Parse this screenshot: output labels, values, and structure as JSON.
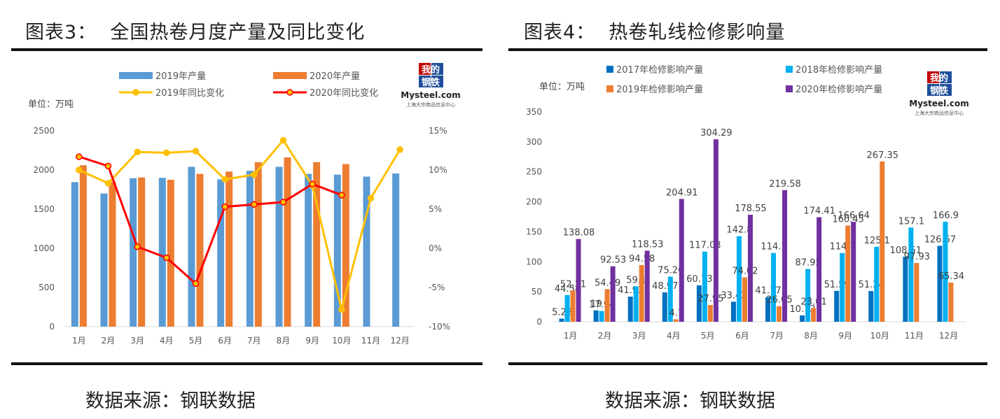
{
  "figures": [
    {
      "title": "图表3：  全国热卷月度产量及同比变化",
      "unit": "单位：万吨",
      "source": "数据来源：钢联数据",
      "logo": {
        "line1": "我的",
        "line2": "钢铁",
        "brand": "Mysteel.com",
        "tagline": "上海大宗商品信息中心"
      }
    },
    {
      "title": "图表4：  热卷轧线检修影响量",
      "unit": "单位：万吨",
      "source": "数据来源：钢联数据",
      "logo": {
        "line1": "我的",
        "line2": "钢铁",
        "brand": "Mysteel.com",
        "tagline": "上海大宗商品信息中心"
      }
    }
  ],
  "chart_data": [
    {
      "type": "bar",
      "categories": [
        "1月",
        "2月",
        "3月",
        "4月",
        "5月",
        "6月",
        "7月",
        "8月",
        "9月",
        "10月",
        "11月",
        "12月"
      ],
      "ylim": [
        0,
        2500
      ],
      "yticks": [
        0,
        500,
        1000,
        1500,
        2000,
        2500
      ],
      "y2lim": [
        -10,
        15
      ],
      "y2ticks": [
        "-10%",
        "-5%",
        "0%",
        "5%",
        "10%",
        "15%"
      ],
      "grid": false,
      "legend_position": "top",
      "series": [
        {
          "name": "2019年产量",
          "kind": "bar",
          "axis": "left",
          "color": "#5b9bd5",
          "values": [
            1845,
            1700,
            1895,
            1900,
            2040,
            1880,
            1990,
            2040,
            1950,
            1940,
            1915,
            1955
          ]
        },
        {
          "name": "2020年产量",
          "kind": "bar",
          "axis": "left",
          "color": "#ed7d31",
          "values": [
            2060,
            1850,
            1905,
            1875,
            1950,
            1980,
            2100,
            2160,
            2100,
            2075,
            null,
            null
          ]
        },
        {
          "name": "2019年同比变化",
          "kind": "line",
          "axis": "right",
          "color": "#ffc000",
          "values": [
            10,
            8.3,
            12.3,
            12.2,
            12.4,
            8.8,
            9.4,
            13.8,
            8.0,
            -7.8,
            6.4,
            12.6
          ]
        },
        {
          "name": "2020年同比变化",
          "kind": "line",
          "axis": "right",
          "color": "#ff0000",
          "values": [
            11.7,
            10.5,
            0.2,
            -1.2,
            -4.5,
            5.3,
            5.6,
            5.9,
            8.2,
            6.8,
            null,
            null
          ]
        }
      ]
    },
    {
      "type": "bar",
      "categories": [
        "1月",
        "2月",
        "3月",
        "4月",
        "5月",
        "6月",
        "7月",
        "8月",
        "9月",
        "10月",
        "11月",
        "12月"
      ],
      "ylim": [
        0,
        350
      ],
      "yticks": [
        0,
        50,
        100,
        150,
        200,
        250,
        300,
        350
      ],
      "grid": false,
      "legend_position": "top",
      "series": [
        {
          "name": "2017年检修影响产量",
          "color": "#0070c0",
          "values": [
            5.22,
            19,
            41.93,
            48.97,
            60.73,
            33.42,
            41.17,
            10.72,
            51.59,
            51.24,
            108.51,
            126.67
          ],
          "labels": [
            "5.22",
            "19",
            "41.93",
            "48.97",
            "60.73",
            "33.42",
            "41.17",
            "10.72",
            "51.59",
            "51.24",
            "108.51",
            "126.67"
          ]
        },
        {
          "name": "2018年检修影响产量",
          "color": "#00b0f0",
          "values": [
            44.58,
            17.94,
            59.1,
            75.26,
            117.03,
            142.8,
            114.7,
            87.95,
            114.7,
            125.1,
            157.1,
            166.9
          ],
          "labels": [
            "44.58",
            "17.94",
            "59.1",
            "75.26",
            "117.03",
            "142.8",
            "114.7",
            "87.95",
            "114.7",
            "125.1",
            "157.1",
            "166.9"
          ]
        },
        {
          "name": "2019年检修影响产量",
          "color": "#ed7d31",
          "values": [
            52.11,
            54.49,
            94.58,
            4.1,
            27.95,
            74.02,
            26.05,
            23.01,
            160.45,
            267.35,
            97.93,
            65.34
          ],
          "labels": [
            "52.11",
            "54.49",
            "94.58",
            "4.1",
            "27.95",
            "74.02",
            "26.05",
            "23.01",
            "160.45",
            "267.35",
            "97.93",
            "65.34"
          ]
        },
        {
          "name": "2020年检修影响产量",
          "color": "#7030a0",
          "values": [
            138.08,
            92.53,
            118.53,
            204.91,
            304.29,
            178.55,
            219.58,
            174.41,
            166.64,
            null,
            null,
            null
          ],
          "labels": [
            "138.08",
            "92.53",
            "118.53",
            "204.91",
            "304.29",
            "178.55",
            "219.58",
            "174.41",
            "166.64",
            null,
            null,
            null
          ]
        }
      ]
    }
  ]
}
